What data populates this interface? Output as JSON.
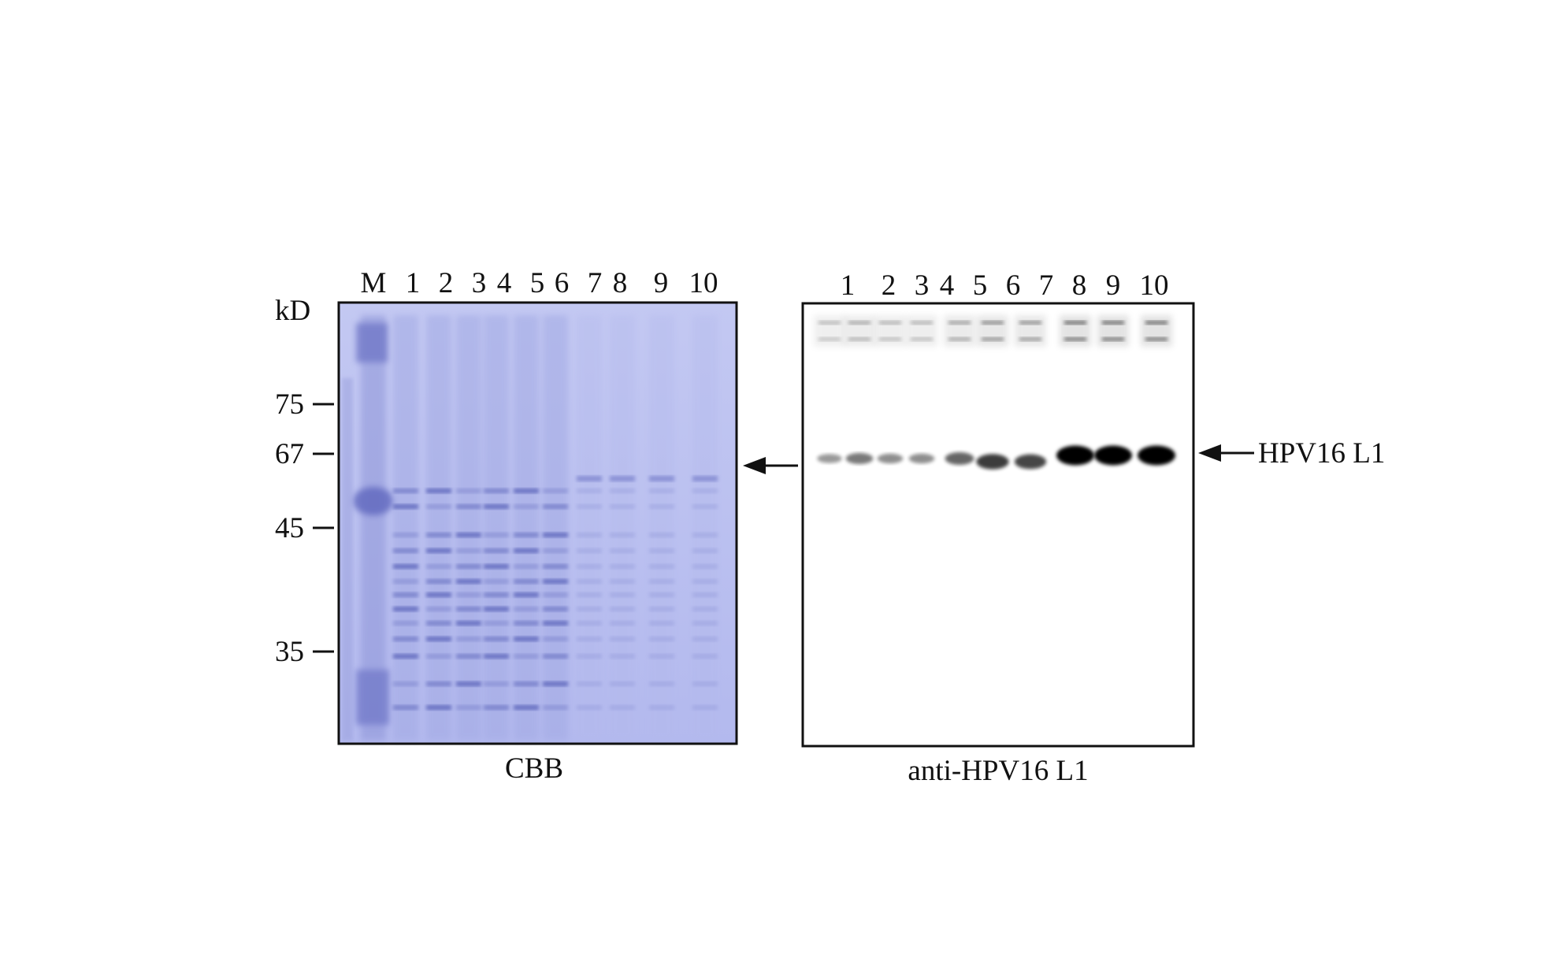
{
  "figure": {
    "cbb_panel": {
      "caption": "CBB",
      "lane_labels": [
        "M",
        "1",
        "2",
        "3",
        "4",
        "5",
        "6",
        "7",
        "8",
        "9",
        "10"
      ],
      "unit_label": "kD",
      "markers": [
        "75",
        "67",
        "45",
        "35"
      ],
      "color": "#b9bff0"
    },
    "western_panel": {
      "caption": "anti-HPV16 L1",
      "lane_labels": [
        "1",
        "2",
        "3",
        "4",
        "5",
        "6",
        "7",
        "8",
        "9",
        "10"
      ],
      "band_label": "HPV16 L1",
      "band_intensity": [
        0.25,
        0.4,
        0.3,
        0.3,
        0.5,
        0.7,
        0.65,
        1.0,
        1.0,
        1.0
      ]
    }
  }
}
